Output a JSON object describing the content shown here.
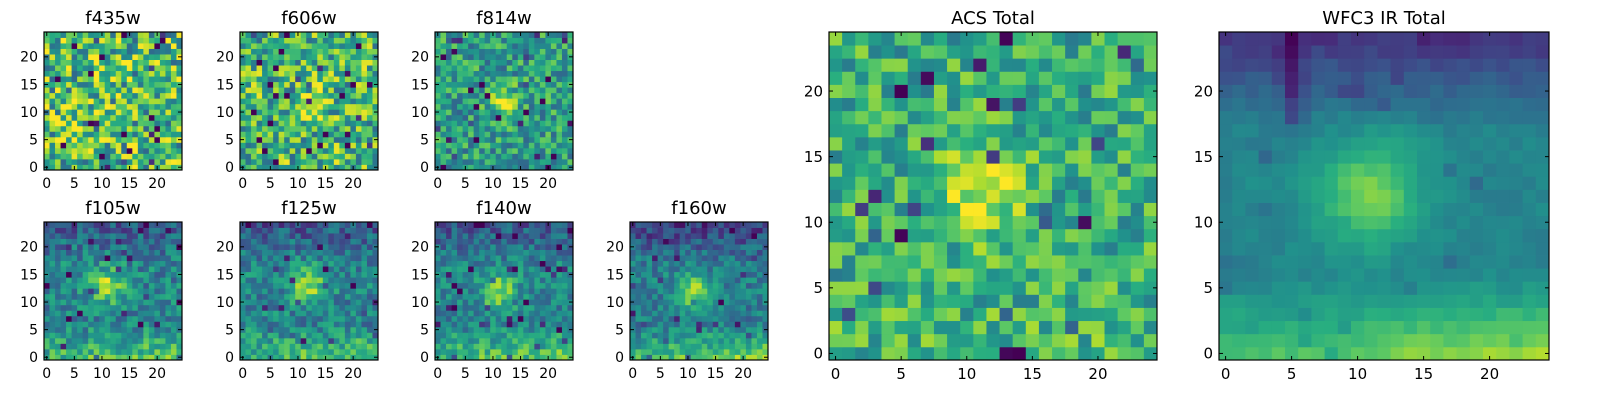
{
  "figure": {
    "colormap": "viridis",
    "colormap_stops": [
      "#440154",
      "#472d7b",
      "#3b528b",
      "#2c728e",
      "#21918c",
      "#28ae80",
      "#5ec962",
      "#addc30",
      "#fde725"
    ]
  },
  "chart_data": [
    {
      "id": "f435w",
      "type": "heatmap",
      "title": "f435w",
      "grid_size": 25,
      "xlim": [
        -0.5,
        24.5
      ],
      "ylim": [
        -0.5,
        24.5
      ],
      "xticks": [
        0,
        5,
        10,
        15,
        20
      ],
      "yticks": [
        0,
        5,
        10,
        15,
        20
      ],
      "grid": false,
      "pattern": "noise",
      "noise_level": 0.36,
      "base_level": 0.68,
      "source_center": [
        12,
        12
      ],
      "source_peak": 0.0,
      "source_sigma": 2.0,
      "bottom_gradient": 0.0,
      "top_darkening": 0.0,
      "seed": 11
    },
    {
      "id": "f606w",
      "type": "heatmap",
      "title": "f606w",
      "grid_size": 25,
      "xlim": [
        -0.5,
        24.5
      ],
      "ylim": [
        -0.5,
        24.5
      ],
      "xticks": [
        0,
        5,
        10,
        15,
        20
      ],
      "yticks": [
        0,
        5,
        10,
        15,
        20
      ],
      "grid": false,
      "pattern": "noise_with_faint_source",
      "noise_level": 0.32,
      "base_level": 0.66,
      "source_center": [
        12,
        12
      ],
      "source_peak": 0.2,
      "source_sigma": 2.2,
      "bottom_gradient": 0.0,
      "top_darkening": 0.0,
      "seed": 23
    },
    {
      "id": "f814w",
      "type": "heatmap",
      "title": "f814w",
      "grid_size": 25,
      "xlim": [
        -0.5,
        24.5
      ],
      "ylim": [
        -0.5,
        24.5
      ],
      "xticks": [
        0,
        5,
        10,
        15,
        20
      ],
      "yticks": [
        0,
        5,
        10,
        15,
        20
      ],
      "grid": false,
      "pattern": "noise_with_source",
      "noise_level": 0.24,
      "base_level": 0.55,
      "source_center": [
        12,
        12
      ],
      "source_peak": 0.4,
      "source_sigma": 1.8,
      "bottom_gradient": 0.0,
      "top_darkening": 0.0,
      "seed": 37
    },
    {
      "id": "f105w",
      "type": "heatmap",
      "title": "f105w",
      "grid_size": 25,
      "xlim": [
        -0.5,
        24.5
      ],
      "ylim": [
        -0.5,
        24.5
      ],
      "xticks": [
        0,
        5,
        10,
        15,
        20
      ],
      "yticks": [
        0,
        5,
        10,
        15,
        20
      ],
      "grid": false,
      "pattern": "source_with_gradient",
      "noise_level": 0.18,
      "base_level": 0.45,
      "source_center": [
        11,
        13
      ],
      "source_peak": 0.4,
      "source_sigma": 2.2,
      "bottom_gradient": 0.32,
      "top_darkening": 0.18,
      "seed": 41
    },
    {
      "id": "f125w",
      "type": "heatmap",
      "title": "f125w",
      "grid_size": 25,
      "xlim": [
        -0.5,
        24.5
      ],
      "ylim": [
        -0.5,
        24.5
      ],
      "xticks": [
        0,
        5,
        10,
        15,
        20
      ],
      "yticks": [
        0,
        5,
        10,
        15,
        20
      ],
      "grid": false,
      "pattern": "source_with_gradient",
      "noise_level": 0.18,
      "base_level": 0.45,
      "source_center": [
        12,
        13
      ],
      "source_peak": 0.4,
      "source_sigma": 2.2,
      "bottom_gradient": 0.32,
      "top_darkening": 0.18,
      "seed": 53
    },
    {
      "id": "f140w",
      "type": "heatmap",
      "title": "f140w",
      "grid_size": 25,
      "xlim": [
        -0.5,
        24.5
      ],
      "ylim": [
        -0.5,
        24.5
      ],
      "xticks": [
        0,
        5,
        10,
        15,
        20
      ],
      "yticks": [
        0,
        5,
        10,
        15,
        20
      ],
      "grid": false,
      "pattern": "source_with_gradient",
      "noise_level": 0.16,
      "base_level": 0.45,
      "source_center": [
        11,
        12
      ],
      "source_peak": 0.4,
      "source_sigma": 2.2,
      "bottom_gradient": 0.35,
      "top_darkening": 0.18,
      "seed": 67
    },
    {
      "id": "f160w",
      "type": "heatmap",
      "title": "f160w",
      "grid_size": 25,
      "xlim": [
        -0.5,
        24.5
      ],
      "ylim": [
        -0.5,
        24.5
      ],
      "xticks": [
        0,
        5,
        10,
        15,
        20
      ],
      "yticks": [
        0,
        5,
        10,
        15,
        20
      ],
      "grid": false,
      "pattern": "source_with_gradient",
      "noise_level": 0.15,
      "base_level": 0.42,
      "source_center": [
        11,
        12
      ],
      "source_peak": 0.45,
      "source_sigma": 2.2,
      "bottom_gradient": 0.4,
      "top_darkening": 0.25,
      "seed": 79
    },
    {
      "id": "acs-total",
      "type": "heatmap",
      "title": "ACS Total",
      "grid_size": 25,
      "xlim": [
        -0.5,
        24.5
      ],
      "ylim": [
        -0.5,
        24.5
      ],
      "xticks": [
        0,
        5,
        10,
        15,
        20
      ],
      "yticks": [
        0,
        5,
        10,
        15,
        20
      ],
      "grid": false,
      "pattern": "noise_with_source",
      "noise_level": 0.22,
      "base_level": 0.62,
      "source_center": [
        11,
        12
      ],
      "source_peak": 0.36,
      "source_sigma": 2.2,
      "bottom_gradient": 0.06,
      "top_darkening": 0.0,
      "seed": 97
    },
    {
      "id": "wfc3-ir-total",
      "type": "heatmap",
      "title": "WFC3 IR Total",
      "grid_size": 25,
      "xlim": [
        -0.5,
        24.5
      ],
      "ylim": [
        -0.5,
        24.5
      ],
      "xticks": [
        0,
        5,
        10,
        15,
        20
      ],
      "yticks": [
        0,
        5,
        10,
        15,
        20
      ],
      "grid": false,
      "pattern": "smooth_source_with_gradient",
      "noise_level": 0.07,
      "base_level": 0.45,
      "source_center": [
        11,
        12
      ],
      "source_peak": 0.38,
      "source_sigma": 2.6,
      "bottom_gradient": 0.42,
      "top_darkening": 0.3,
      "dark_streak_column": 5,
      "seed": 113
    }
  ]
}
